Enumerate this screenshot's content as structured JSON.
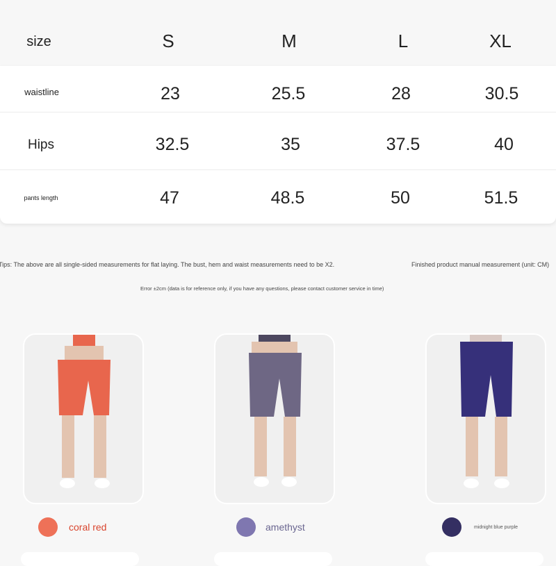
{
  "table": {
    "headers": [
      "size",
      "S",
      "M",
      "L",
      "XL"
    ],
    "rows": [
      {
        "label": "waistline",
        "values": [
          "23",
          "25.5",
          "28",
          "30.5"
        ]
      },
      {
        "label": "Hips",
        "values": [
          "32.5",
          "35",
          "37.5",
          "40"
        ]
      },
      {
        "label": "pants length",
        "values": [
          "47",
          "48.5",
          "50",
          "51.5"
        ]
      }
    ]
  },
  "notes": {
    "tips": "Tips: The above are all single-sided measurements for flat laying. The bust, hem and waist measurements need to be X2.",
    "unit": "Finished product manual measurement (unit: CM)",
    "error": "Error ±2cm (data is for reference only, if you have any questions, please contact customer service in time)"
  },
  "colors": [
    {
      "name": "coral red",
      "hex": "#ee7158",
      "text": "#d9452e"
    },
    {
      "name": "amethyst",
      "hex": "#7f77b0",
      "text": "#6a6690"
    },
    {
      "name": "midnight blue purple",
      "hex": "#342f62",
      "text": "#555"
    }
  ]
}
